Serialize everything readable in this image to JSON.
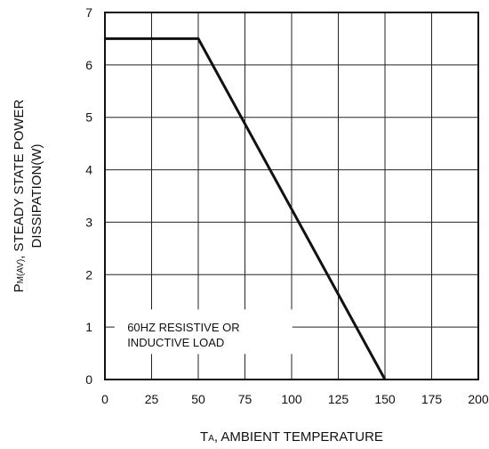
{
  "chart_data": {
    "type": "line",
    "title": "",
    "xlabel": "TA, AMBIENT TEMPERATURE",
    "xlabel_main": "T",
    "xlabel_sub": "A",
    "xlabel_rest": ", AMBIENT TEMPERATURE",
    "ylabel_line1_main": "P",
    "ylabel_line1_sub": "M(AV)",
    "ylabel_line1_rest": ", STEADY STATE POWER",
    "ylabel_line2": "DISSIPATION(W)",
    "xlim": [
      0,
      200
    ],
    "ylim": [
      0,
      7
    ],
    "x_ticks": [
      0,
      25,
      50,
      75,
      100,
      125,
      150,
      175,
      200
    ],
    "y_ticks": [
      0,
      1,
      2,
      3,
      4,
      5,
      6,
      7
    ],
    "x_tick_labels": [
      "0",
      "25",
      "50",
      "75",
      "100",
      "125",
      "150",
      "175",
      "200"
    ],
    "y_tick_labels": [
      "0",
      "1",
      "2",
      "3",
      "4",
      "5",
      "6",
      "7"
    ],
    "grid": true,
    "series": [
      {
        "x": [
          0,
          50,
          150
        ],
        "y": [
          6.5,
          6.5,
          0
        ]
      }
    ],
    "annotation": {
      "lines": [
        "60HZ RESISTIVE OR",
        "INDUCTIVE LOAD"
      ]
    },
    "colors": {
      "line": "#111111",
      "grid": "#222222",
      "background": "#ffffff"
    }
  }
}
